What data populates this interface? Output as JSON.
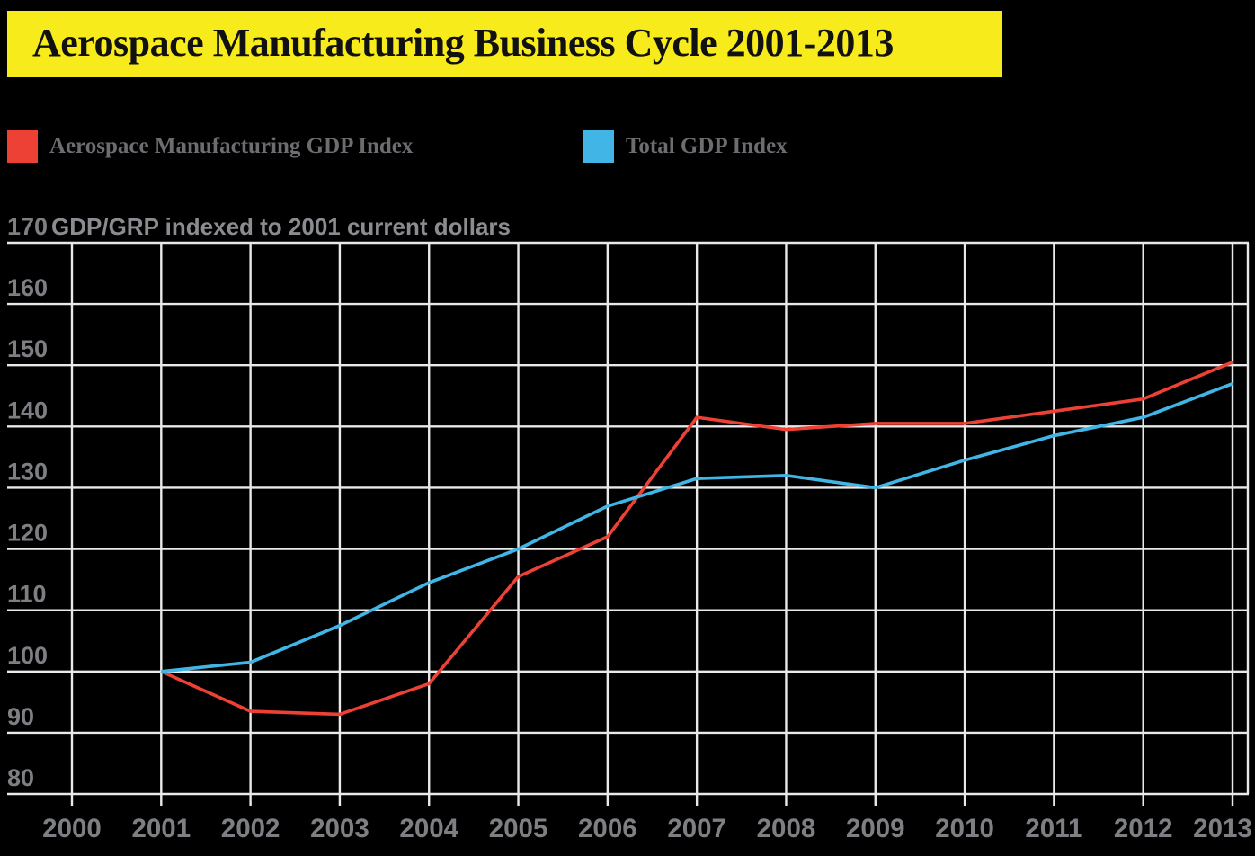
{
  "header": {
    "title": "Aerospace Manufacturing Business Cycle 2001-2013",
    "banner_color": "#f8eb1c"
  },
  "legend": {
    "items": [
      {
        "label": "Aerospace Manufacturing GDP Index",
        "color": "#ee4136"
      },
      {
        "label": "Total GDP Index",
        "color": "#41b6e6"
      }
    ]
  },
  "chart_data": {
    "type": "line",
    "title": "Aerospace Manufacturing Business Cycle 2001-2013",
    "ylabel": "GDP/GRP indexed to 2001 current dollars",
    "xlabel": "",
    "grid": true,
    "legend_position": "top",
    "x_ticks": [
      2000,
      2001,
      2002,
      2003,
      2004,
      2005,
      2006,
      2007,
      2008,
      2009,
      2010,
      2011,
      2012,
      2013
    ],
    "y_ticks": [
      170,
      160,
      150,
      140,
      130,
      120,
      110,
      100,
      90,
      80
    ],
    "ylim": [
      80,
      170
    ],
    "xlim": [
      2000,
      2013
    ],
    "x": [
      2001,
      2002,
      2003,
      2004,
      2005,
      2006,
      2007,
      2008,
      2009,
      2010,
      2011,
      2012,
      2013
    ],
    "series": [
      {
        "name": "Aerospace Manufacturing GDP Index",
        "color": "#ee4136",
        "values": [
          100,
          93.5,
          93,
          98,
          115.5,
          122,
          141.5,
          139.5,
          140.5,
          140.5,
          142.5,
          144.5,
          150.5
        ]
      },
      {
        "name": "Total GDP Index",
        "color": "#41b6e6",
        "values": [
          100,
          101.5,
          107.5,
          114.5,
          120,
          127,
          131.5,
          132,
          130,
          134.5,
          138.5,
          141.5,
          147
        ]
      }
    ],
    "colors": {
      "background": "#000000",
      "grid": "#e9e9e9",
      "tick_text": "#7e7f83",
      "axis_label_text": "#8b8c90",
      "legend_text": "#6c6d70"
    }
  }
}
